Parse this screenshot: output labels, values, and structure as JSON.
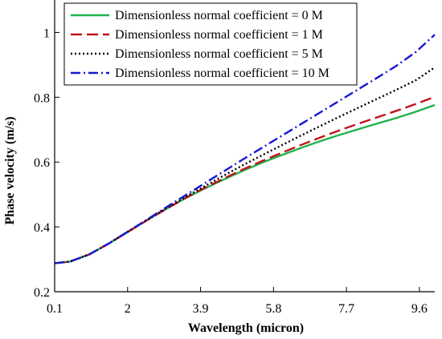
{
  "chart_data": {
    "type": "line",
    "title": "",
    "xlabel": "Wavelength (micron)",
    "ylabel": "Phase velocity (m/s)",
    "xlim": [
      0.1,
      10.0
    ],
    "ylim": [
      0.2,
      1.1
    ],
    "x_ticks": [
      "0.1",
      "2",
      "3.9",
      "5.8",
      "7.7",
      "9.6"
    ],
    "x_tick_values": [
      0.1,
      2.0,
      3.9,
      5.8,
      7.7,
      9.6
    ],
    "y_ticks": [
      "0.2",
      "0.4",
      "0.6",
      "0.8",
      "1"
    ],
    "y_tick_values": [
      0.2,
      0.4,
      0.6,
      0.8,
      1.0
    ],
    "grid": false,
    "legend_position": "top-center",
    "x": [
      0.1,
      0.5,
      1.0,
      1.5,
      2.0,
      2.5,
      3.0,
      3.5,
      4.0,
      4.5,
      5.0,
      5.5,
      6.0,
      6.5,
      7.0,
      7.5,
      8.0,
      8.5,
      9.0,
      9.5,
      10.0
    ],
    "series": [
      {
        "name": "Dimensionless normal coefficient = 0 M",
        "color": "#1fb24a",
        "dash": "solid",
        "values": [
          0.288,
          0.293,
          0.315,
          0.348,
          0.384,
          0.42,
          0.455,
          0.488,
          0.518,
          0.546,
          0.573,
          0.598,
          0.621,
          0.643,
          0.664,
          0.683,
          0.701,
          0.719,
          0.736,
          0.755,
          0.776
        ]
      },
      {
        "name": "Dimensionless normal coefficient = 1 M",
        "color": "#c0141c",
        "dash": "long-dash",
        "values": [
          0.288,
          0.293,
          0.315,
          0.348,
          0.384,
          0.42,
          0.455,
          0.489,
          0.52,
          0.549,
          0.577,
          0.603,
          0.628,
          0.652,
          0.675,
          0.697,
          0.718,
          0.738,
          0.758,
          0.779,
          0.801
        ]
      },
      {
        "name": "Dimensionless normal coefficient = 5 M",
        "color": "#000000",
        "dash": "dotted",
        "values": [
          0.288,
          0.293,
          0.315,
          0.348,
          0.385,
          0.421,
          0.457,
          0.492,
          0.525,
          0.558,
          0.59,
          0.621,
          0.651,
          0.681,
          0.71,
          0.739,
          0.767,
          0.795,
          0.823,
          0.852,
          0.892
        ]
      },
      {
        "name": "Dimensionless normal coefficient = 10 M",
        "color": "#1818d0",
        "dash": "dash-dot",
        "values": [
          0.288,
          0.293,
          0.315,
          0.348,
          0.385,
          0.422,
          0.46,
          0.497,
          0.534,
          0.571,
          0.608,
          0.644,
          0.68,
          0.716,
          0.752,
          0.788,
          0.824,
          0.86,
          0.897,
          0.939,
          0.993
        ]
      }
    ]
  }
}
